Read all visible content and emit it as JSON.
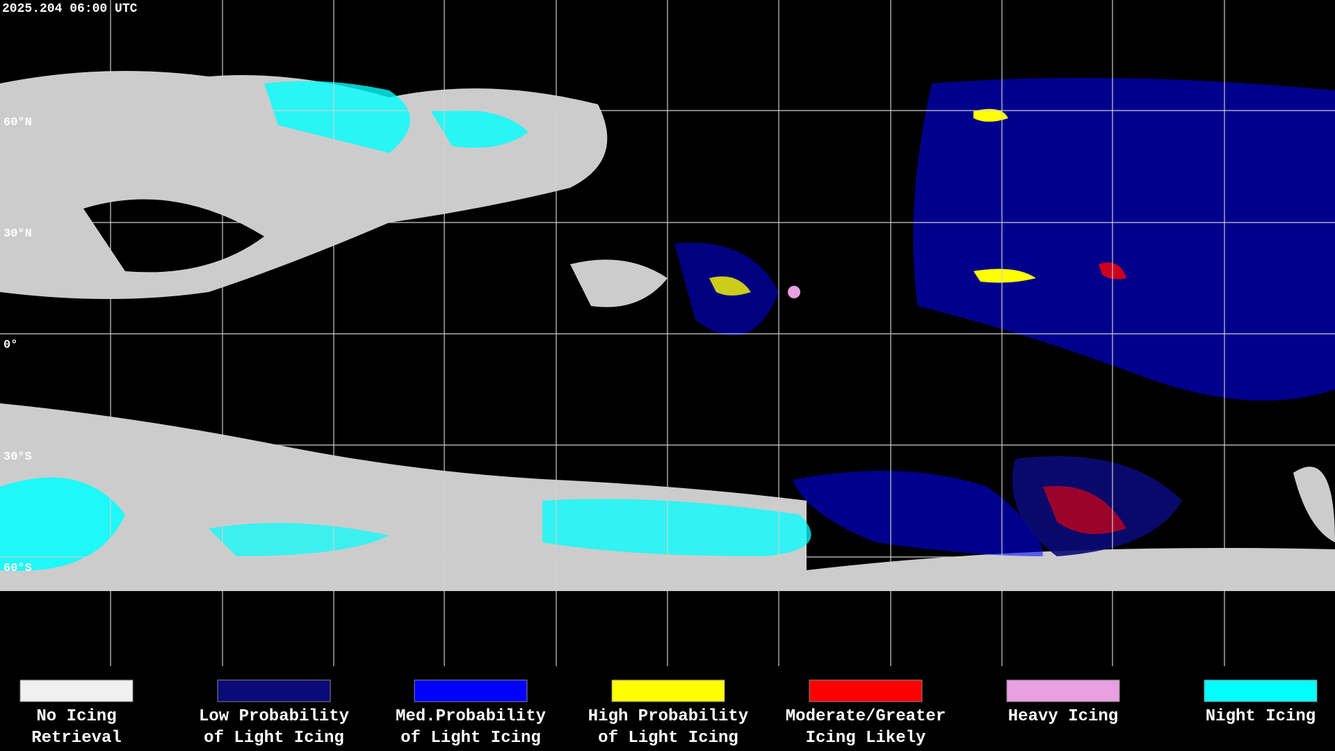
{
  "timestamp": "2025.204 06:00 UTC",
  "latitude_labels": [
    "60°N",
    "30°N",
    "0°",
    "30°S",
    "60°S"
  ],
  "legend": [
    {
      "color": "#f0f0f0",
      "lines": [
        "No Icing",
        "Retrieval"
      ]
    },
    {
      "color": "#0a0a78",
      "lines": [
        "Low Probability",
        "of Light Icing"
      ]
    },
    {
      "color": "#0000ff",
      "lines": [
        "Med.Probability",
        "of Light Icing"
      ]
    },
    {
      "color": "#ffff00",
      "lines": [
        "High Probability",
        "of Light Icing"
      ]
    },
    {
      "color": "#ff0000",
      "lines": [
        "Moderate/Greater",
        "Icing Likely"
      ]
    },
    {
      "color": "#e8a0e0",
      "lines": [
        "Heavy Icing"
      ]
    },
    {
      "color": "#00ffff",
      "lines": [
        "Night Icing"
      ]
    }
  ]
}
